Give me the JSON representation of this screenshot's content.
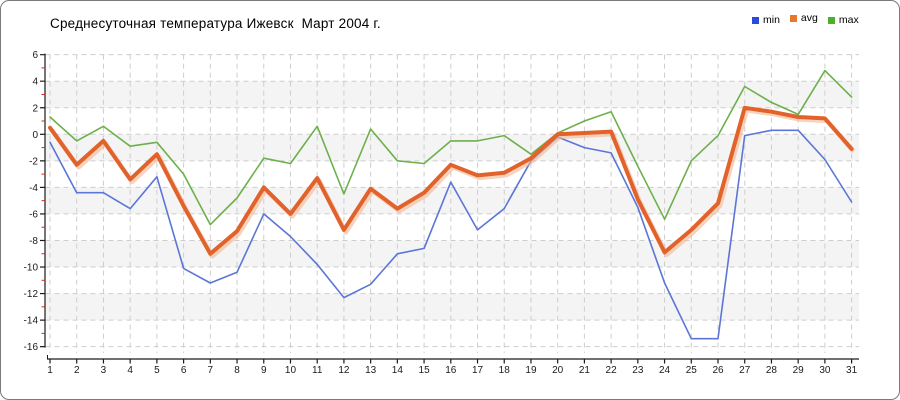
{
  "title": "Среднесуточная температура Ижевск  Март 2004 г.",
  "legend": {
    "items": [
      {
        "label": "min",
        "color": "#2a49dd"
      },
      {
        "label": "avg",
        "color": "#e9772b"
      },
      {
        "label": "max",
        "color": "#4cb02a"
      }
    ]
  },
  "chart_data": {
    "type": "line",
    "title": "Среднесуточная температура Ижевск  Март 2004 г.",
    "x": [
      1,
      2,
      3,
      4,
      5,
      6,
      7,
      8,
      9,
      10,
      11,
      12,
      13,
      14,
      15,
      16,
      17,
      18,
      19,
      20,
      21,
      22,
      23,
      24,
      25,
      26,
      27,
      28,
      29,
      30,
      31
    ],
    "x_tick_labels": [
      "1",
      "2",
      "3",
      "4",
      "5",
      "6",
      "7",
      "8",
      "9",
      "10",
      "11",
      "12",
      "13",
      "14",
      "15",
      "16",
      "17",
      "18",
      "19",
      "20",
      "21",
      "22",
      "23",
      "24",
      "25",
      "26",
      "27",
      "28",
      "29",
      "30",
      "31"
    ],
    "y_tick_labels": [
      "6",
      "4",
      "2",
      "0",
      "-2",
      "-4",
      "-6",
      "-8",
      "-10",
      "-12",
      "-14",
      "-16"
    ],
    "y_ticks": [
      6,
      4,
      2,
      0,
      -2,
      -4,
      -6,
      -8,
      -10,
      -12,
      -14,
      -16
    ],
    "ylim": [
      -16,
      6
    ],
    "ytick_step": 2,
    "grid": true,
    "alternating_bands": true,
    "legend_position": "top-right",
    "series": [
      {
        "name": "min",
        "color": "#5b76d6",
        "stroke_width": 1.6,
        "values": [
          -0.6,
          -4.4,
          -4.4,
          -5.6,
          -3.2,
          -10.1,
          -11.2,
          -10.4,
          -6.0,
          -7.7,
          -9.8,
          -12.3,
          -11.3,
          -9.0,
          -8.6,
          -3.6,
          -7.2,
          -5.6,
          -2.0,
          -0.2,
          -1.0,
          -1.4,
          -5.5,
          -11.2,
          -15.4,
          -15.4,
          -0.1,
          0.3,
          0.3,
          -1.9,
          -5.1
        ]
      },
      {
        "name": "avg",
        "color": "#e2622b",
        "stroke_width": 4,
        "values": [
          0.5,
          -2.3,
          -0.5,
          -3.4,
          -1.5,
          -5.4,
          -9.0,
          -7.3,
          -4.0,
          -6.0,
          -3.3,
          -7.2,
          -4.1,
          -5.6,
          -4.4,
          -2.3,
          -3.1,
          -2.9,
          -1.8,
          0.0,
          0.1,
          0.2,
          -4.9,
          -8.9,
          -7.2,
          -5.2,
          2.0,
          1.7,
          1.3,
          1.2,
          -1.1
        ]
      },
      {
        "name": "max",
        "color": "#6db04b",
        "stroke_width": 1.6,
        "values": [
          1.3,
          -0.5,
          0.6,
          -0.9,
          -0.6,
          -3.0,
          -6.8,
          -4.8,
          -1.8,
          -2.2,
          0.6,
          -4.5,
          0.4,
          -2.0,
          -2.2,
          -0.5,
          -0.5,
          -0.1,
          -1.5,
          0.1,
          1.0,
          1.7,
          -2.4,
          -6.4,
          -2.0,
          -0.1,
          3.6,
          2.4,
          1.5,
          4.8,
          2.8
        ]
      }
    ]
  },
  "colors": {
    "band": "#f4f4f4",
    "grid": "#cdcdcd",
    "axis": "#1a1a1a",
    "minor_tick": "#c92e22",
    "label": "#1a1a1a",
    "avg_halo": "#f2b690",
    "border": "#7a7a7a"
  }
}
